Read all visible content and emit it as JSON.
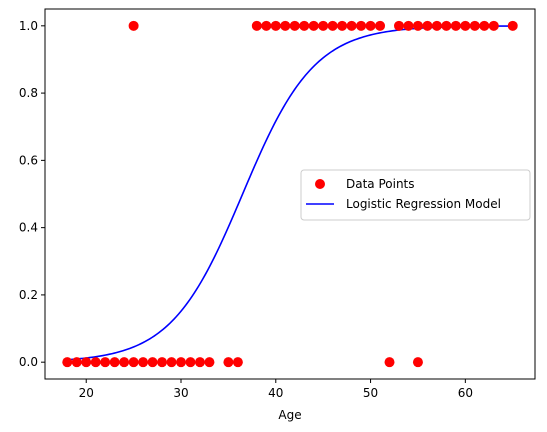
{
  "chart_data": {
    "type": "scatter",
    "title": "",
    "xlabel": "Age",
    "ylabel": "",
    "xlim": [
      15.65,
      67.35
    ],
    "ylim": [
      -0.05,
      1.05
    ],
    "xticks": [
      20,
      30,
      40,
      50,
      60
    ],
    "yticks": [
      0.0,
      0.2,
      0.4,
      0.6,
      0.8,
      1.0
    ],
    "xtick_labels": [
      "20",
      "30",
      "40",
      "50",
      "60"
    ],
    "ytick_labels": [
      "0.0",
      "0.2",
      "0.4",
      "0.6",
      "0.8",
      "1.0"
    ],
    "grid": false,
    "legend_position": "center right",
    "series": [
      {
        "name": "Data Points",
        "kind": "scatter",
        "color": "#ff0000",
        "points": [
          [
            18,
            0
          ],
          [
            19,
            0
          ],
          [
            20,
            0
          ],
          [
            21,
            0
          ],
          [
            22,
            0
          ],
          [
            23,
            0
          ],
          [
            24,
            0
          ],
          [
            25,
            0
          ],
          [
            26,
            0
          ],
          [
            27,
            0
          ],
          [
            28,
            0
          ],
          [
            29,
            0
          ],
          [
            30,
            0
          ],
          [
            31,
            0
          ],
          [
            32,
            0
          ],
          [
            33,
            0
          ],
          [
            35,
            0
          ],
          [
            36,
            0
          ],
          [
            52,
            0
          ],
          [
            55,
            0
          ],
          [
            25,
            1
          ],
          [
            38,
            1
          ],
          [
            39,
            1
          ],
          [
            40,
            1
          ],
          [
            41,
            1
          ],
          [
            42,
            1
          ],
          [
            43,
            1
          ],
          [
            44,
            1
          ],
          [
            45,
            1
          ],
          [
            46,
            1
          ],
          [
            47,
            1
          ],
          [
            48,
            1
          ],
          [
            49,
            1
          ],
          [
            50,
            1
          ],
          [
            51,
            1
          ],
          [
            53,
            1
          ],
          [
            54,
            1
          ],
          [
            55,
            1
          ],
          [
            56,
            1
          ],
          [
            57,
            1
          ],
          [
            58,
            1
          ],
          [
            59,
            1
          ],
          [
            60,
            1
          ],
          [
            61,
            1
          ],
          [
            62,
            1
          ],
          [
            63,
            1
          ],
          [
            65,
            1
          ]
        ]
      },
      {
        "name": "Logistic Regression Model",
        "kind": "line",
        "color": "#0000ff",
        "model": {
          "midpoint": 36.5,
          "slope": 0.265
        },
        "x_range": [
          18,
          65
        ]
      }
    ]
  }
}
